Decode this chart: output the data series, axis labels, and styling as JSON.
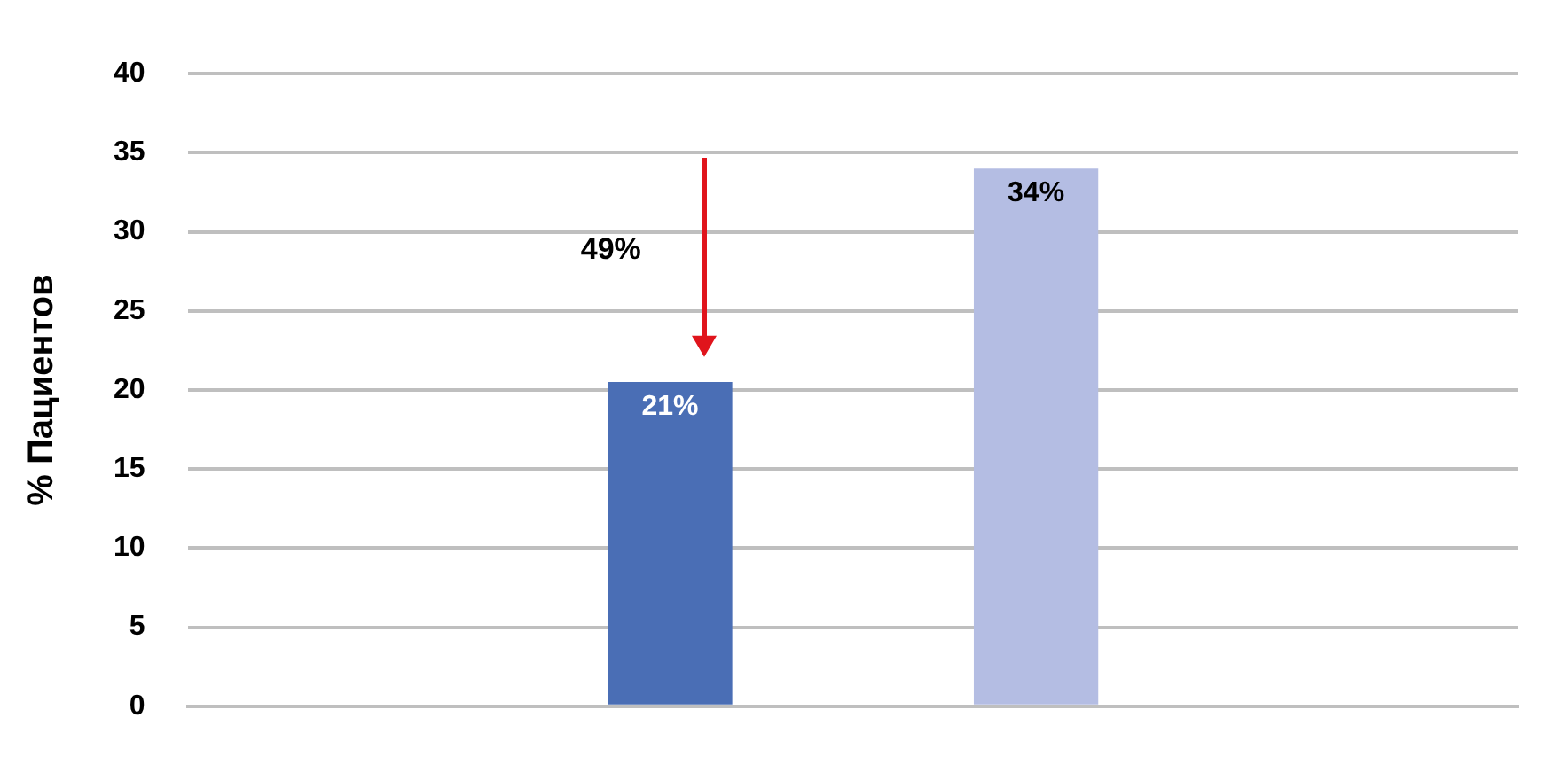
{
  "chart_data": {
    "type": "bar",
    "ylabel": "% Пациентов",
    "categories": [
      null
    ],
    "series": [
      {
        "color": "#4a6eb5",
        "values": [
          20.5
        ],
        "value_labels": [
          "21%"
        ]
      },
      {
        "color": "#b4bde3",
        "values": [
          34
        ],
        "value_labels": [
          "34%"
        ]
      }
    ],
    "ylim": [
      0,
      40
    ],
    "yticks": [
      0,
      5,
      10,
      15,
      20,
      25,
      30,
      35,
      40
    ],
    "grid": "y",
    "legend": false,
    "annotations": [
      "49%"
    ]
  }
}
